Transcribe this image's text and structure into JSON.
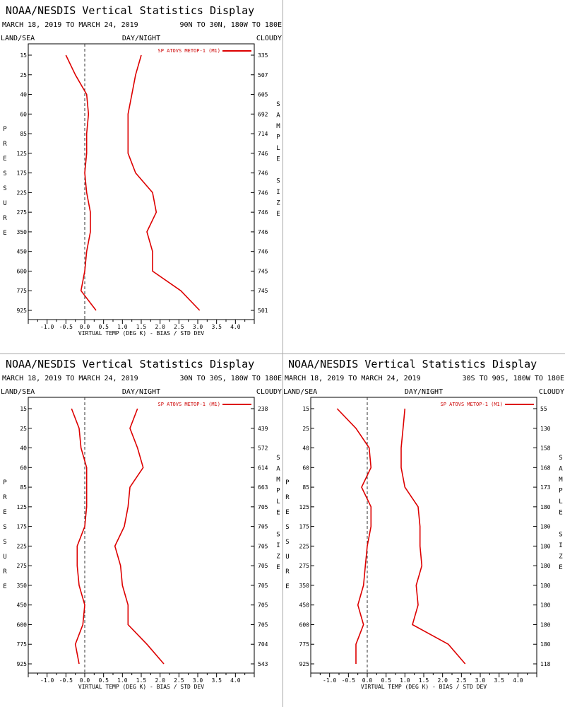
{
  "figures": [
    {
      "title": "NOAA/NESDIS Vertical Statistics Display",
      "date_range": "MARCH 18, 2019 TO MARCH 24, 2019",
      "region": "90N TO 30N, 180W TO 180E",
      "surface": "LAND/SEA",
      "time_of_day": "DAY/NIGHT",
      "sky": "CLOUDY",
      "legend": "SP ATOVS METOP-1 (M1)",
      "xlabel": "VIRTUAL TEMP (DEG K) - BIAS / STD DEV",
      "ylabel_letters": [
        "P",
        "R",
        "E",
        "S",
        "S",
        "U",
        "R",
        "E"
      ],
      "y2label_letters": [
        "S",
        "A",
        "M",
        "P",
        "L",
        "E",
        "",
        "S",
        "I",
        "Z",
        "E"
      ]
    },
    {
      "title": "NOAA/NESDIS Vertical Statistics Display",
      "date_range": "MARCH 18, 2019 TO MARCH 24, 2019",
      "region": "30N TO 30S, 180W TO 180E",
      "surface": "LAND/SEA",
      "time_of_day": "DAY/NIGHT",
      "sky": "CLOUDY",
      "legend": "SP ATOVS METOP-1 (M1)",
      "xlabel": "VIRTUAL TEMP (DEG K) - BIAS / STD DEV",
      "ylabel_letters": [
        "P",
        "R",
        "E",
        "S",
        "S",
        "U",
        "R",
        "E"
      ],
      "y2label_letters": [
        "S",
        "A",
        "M",
        "P",
        "L",
        "E",
        "",
        "S",
        "I",
        "Z",
        "E"
      ]
    },
    {
      "title": "NOAA/NESDIS Vertical Statistics Display",
      "date_range": "MARCH 18, 2019 TO MARCH 24, 2019",
      "region": "30S TO 90S, 180W TO 180E",
      "surface": "LAND/SEA",
      "time_of_day": "DAY/NIGHT",
      "sky": "CLOUDY",
      "legend": "SP ATOVS METOP-1 (M1)",
      "xlabel": "VIRTUAL TEMP (DEG K) - BIAS / STD DEV",
      "ylabel_letters": [
        "P",
        "R",
        "E",
        "S",
        "S",
        "U",
        "R",
        "E"
      ],
      "y2label_letters": [
        "S",
        "A",
        "M",
        "P",
        "L",
        "E",
        "",
        "S",
        "I",
        "Z",
        "E"
      ]
    }
  ],
  "colors": {
    "series": "#dd0000",
    "axis": "#000000",
    "zero_line": "#333333",
    "separator": "#aaaaaa"
  },
  "chart_data": [
    {
      "type": "line",
      "x_ticks": [
        "-1.0",
        "-0.5",
        "0.0",
        "0.5",
        "1.0",
        "1.5",
        "2.0",
        "2.5",
        "3.0",
        "3.5",
        "4.0"
      ],
      "xlim": [
        -1.5,
        4.5
      ],
      "pressure_levels": [
        "15",
        "25",
        "40",
        "60",
        "85",
        "125",
        "175",
        "225",
        "275",
        "350",
        "450",
        "600",
        "775",
        "925"
      ],
      "sample_size": [
        "335",
        "507",
        "605",
        "692",
        "714",
        "746",
        "746",
        "746",
        "746",
        "746",
        "746",
        "745",
        "745",
        "501"
      ],
      "series": [
        {
          "role": "bias",
          "values": [
            -0.5,
            -0.25,
            0.05,
            0.1,
            0.05,
            0.05,
            0.0,
            0.05,
            0.15,
            0.15,
            0.05,
            0.0,
            -0.1,
            0.3
          ]
        },
        {
          "role": "std_dev",
          "values": [
            1.5,
            1.35,
            1.25,
            1.15,
            1.15,
            1.15,
            1.35,
            1.8,
            1.9,
            1.65,
            1.8,
            1.8,
            2.55,
            3.05
          ]
        }
      ]
    },
    {
      "type": "line",
      "x_ticks": [
        "-1.0",
        "-0.5",
        "0.0",
        "0.5",
        "1.0",
        "1.5",
        "2.0",
        "2.5",
        "3.0",
        "3.5",
        "4.0"
      ],
      "xlim": [
        -1.5,
        4.5
      ],
      "pressure_levels": [
        "15",
        "25",
        "40",
        "60",
        "85",
        "125",
        "175",
        "225",
        "275",
        "350",
        "450",
        "600",
        "775",
        "925"
      ],
      "sample_size": [
        "238",
        "439",
        "572",
        "614",
        "663",
        "705",
        "705",
        "705",
        "705",
        "705",
        "705",
        "705",
        "704",
        "543"
      ],
      "series": [
        {
          "role": "bias",
          "values": [
            -0.35,
            -0.15,
            -0.1,
            0.05,
            0.05,
            0.05,
            0.0,
            -0.2,
            -0.2,
            -0.15,
            0.0,
            -0.05,
            -0.25,
            -0.15
          ]
        },
        {
          "role": "std_dev",
          "values": [
            1.4,
            1.2,
            1.4,
            1.55,
            1.2,
            1.15,
            1.05,
            0.8,
            0.95,
            1.0,
            1.15,
            1.15,
            1.65,
            2.1
          ]
        }
      ]
    },
    {
      "type": "line",
      "x_ticks": [
        "-1.0",
        "-0.5",
        "0.0",
        "0.5",
        "1.0",
        "1.5",
        "2.0",
        "2.5",
        "3.0",
        "3.5",
        "4.0"
      ],
      "xlim": [
        -1.5,
        4.5
      ],
      "pressure_levels": [
        "15",
        "25",
        "40",
        "60",
        "85",
        "125",
        "175",
        "225",
        "275",
        "350",
        "450",
        "600",
        "775",
        "925"
      ],
      "sample_size": [
        "55",
        "130",
        "158",
        "168",
        "173",
        "180",
        "180",
        "180",
        "180",
        "180",
        "180",
        "180",
        "180",
        "118"
      ],
      "series": [
        {
          "role": "bias",
          "values": [
            -0.8,
            -0.3,
            0.05,
            0.1,
            -0.15,
            0.1,
            0.1,
            0.0,
            -0.05,
            -0.1,
            -0.25,
            -0.1,
            -0.3,
            -0.3
          ]
        },
        {
          "role": "std_dev",
          "values": [
            1.0,
            0.95,
            0.9,
            0.9,
            1.0,
            1.35,
            1.4,
            1.4,
            1.45,
            1.3,
            1.35,
            1.2,
            2.15,
            2.6
          ]
        }
      ]
    }
  ]
}
